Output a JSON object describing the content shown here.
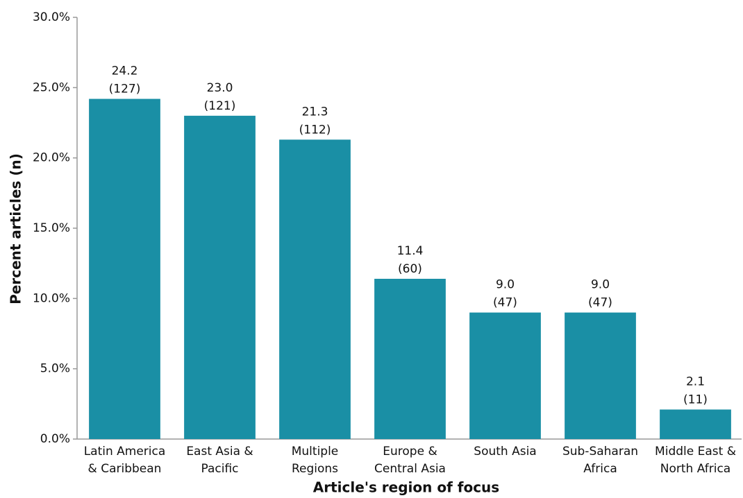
{
  "chart_data": {
    "type": "bar",
    "xlabel": "Article's region of focus",
    "ylabel": "Percent articles (n)",
    "categories": [
      "Latin America\n& Caribbean",
      "East Asia &\nPacific",
      "Multiple\nRegions",
      "Europe &\nCentral Asia",
      "South Asia",
      "Sub-Saharan\nAfrica",
      "Middle East &\nNorth Africa"
    ],
    "values": [
      24.2,
      23.0,
      21.3,
      11.4,
      9.0,
      9.0,
      2.1
    ],
    "value_labels": [
      "24.2",
      "23.0",
      "21.3",
      "11.4",
      "9.0",
      "9.0",
      "2.1"
    ],
    "count_labels": [
      "(127)",
      "(121)",
      "(112)",
      "(60)",
      "(47)",
      "(47)",
      "(11)"
    ],
    "color": "#1a8fa5",
    "ylim": [
      0,
      30
    ],
    "yticks": [
      {
        "value": 0,
        "label": "0.0%"
      },
      {
        "value": 5,
        "label": "5.0%"
      },
      {
        "value": 10,
        "label": "10.0%"
      },
      {
        "value": 15,
        "label": "15.0%"
      },
      {
        "value": 20,
        "label": "20.0%"
      },
      {
        "value": 25,
        "label": "25.0%"
      },
      {
        "value": 30,
        "label": "30.0%"
      }
    ],
    "grid": false
  }
}
